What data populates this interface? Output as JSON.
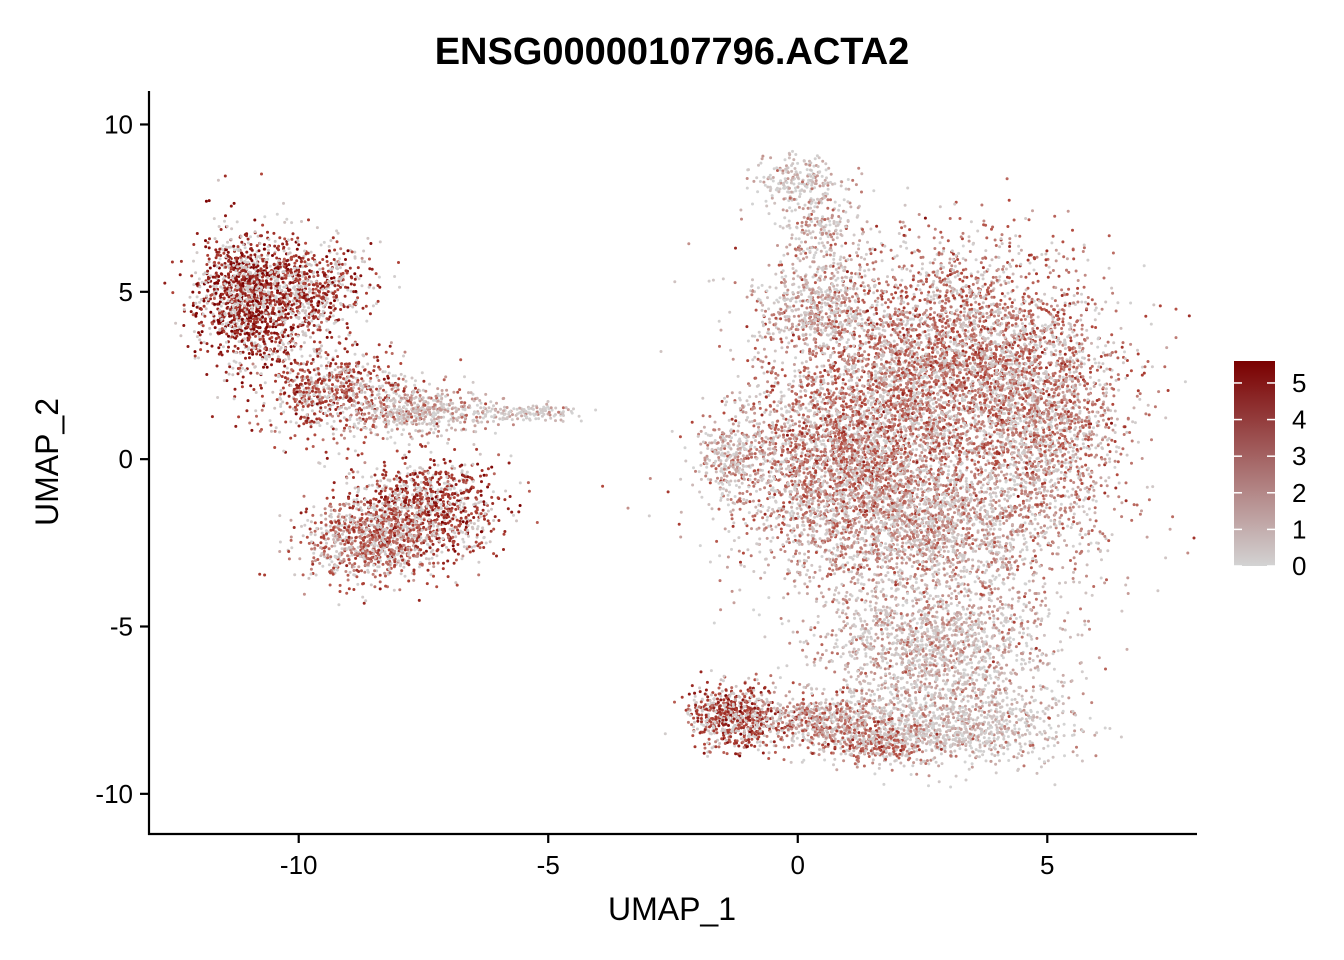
{
  "chart_data": {
    "type": "scatter",
    "title": "ENSG00000107796.ACTA2",
    "xlabel": "UMAP_1",
    "ylabel": "UMAP_2",
    "xlim": [
      -13,
      8
    ],
    "ylim": [
      -11.2,
      11
    ],
    "x_ticks": [
      -10,
      -5,
      0,
      5
    ],
    "x_tick_labels": [
      "-10",
      "-5",
      "0",
      "5"
    ],
    "y_ticks": [
      -10,
      -5,
      0,
      5,
      10
    ],
    "y_tick_labels": [
      "-10",
      "-5",
      "0",
      "5",
      "10"
    ],
    "grid": false,
    "color_scale": {
      "min": 0,
      "max": 5.6,
      "low_color": "#d3d3d3",
      "high_color": "#7a0000",
      "ticks": [
        0,
        1,
        2,
        3,
        4,
        5
      ],
      "tick_labels": [
        "0",
        "1",
        "2",
        "3",
        "4",
        "5"
      ],
      "legend_position": "right"
    },
    "clusters": [
      {
        "cx": -11.0,
        "cy": 4.8,
        "sx": 0.7,
        "sy": 1.3,
        "level": 4.5,
        "n": 1400
      },
      {
        "cx": -9.8,
        "cy": 5.0,
        "sx": 0.8,
        "sy": 1.0,
        "level": 4.0,
        "n": 600
      },
      {
        "cx": -9.3,
        "cy": 2.0,
        "sx": 1.0,
        "sy": 0.9,
        "level": 3.3,
        "n": 700
      },
      {
        "cx": -7.5,
        "cy": -1.5,
        "sx": 1.0,
        "sy": 1.0,
        "level": 3.8,
        "n": 1100
      },
      {
        "cx": -8.6,
        "cy": -2.5,
        "sx": 0.9,
        "sy": 0.8,
        "level": 2.5,
        "n": 800
      },
      {
        "cx": -7.6,
        "cy": 1.4,
        "sx": 0.9,
        "sy": 0.5,
        "level": 1.2,
        "n": 450
      },
      {
        "cx": -5.6,
        "cy": 1.4,
        "sx": 0.9,
        "sy": 0.2,
        "level": 0.6,
        "n": 160
      },
      {
        "cx": 3.0,
        "cy": 3.0,
        "sx": 2.0,
        "sy": 2.2,
        "level": 2.4,
        "n": 3800
      },
      {
        "cx": 1.0,
        "cy": 0.2,
        "sx": 1.6,
        "sy": 1.8,
        "level": 2.3,
        "n": 2600
      },
      {
        "cx": 5.0,
        "cy": 1.0,
        "sx": 1.0,
        "sy": 2.0,
        "level": 2.0,
        "n": 1300
      },
      {
        "cx": 2.5,
        "cy": -2.0,
        "sx": 2.2,
        "sy": 1.4,
        "level": 1.5,
        "n": 2200
      },
      {
        "cx": 2.8,
        "cy": -5.5,
        "sx": 1.6,
        "sy": 1.4,
        "level": 0.9,
        "n": 1600
      },
      {
        "cx": 3.0,
        "cy": -8.0,
        "sx": 1.6,
        "sy": 0.8,
        "level": 0.6,
        "n": 1000
      },
      {
        "cx": -1.3,
        "cy": -7.7,
        "sx": 0.6,
        "sy": 0.6,
        "level": 3.6,
        "n": 650
      },
      {
        "cx": 0.4,
        "cy": -7.8,
        "sx": 0.9,
        "sy": 0.6,
        "level": 2.0,
        "n": 500
      },
      {
        "cx": 1.6,
        "cy": -8.5,
        "sx": 0.7,
        "sy": 0.4,
        "level": 2.6,
        "n": 300
      },
      {
        "cx": 0.0,
        "cy": 8.3,
        "sx": 0.6,
        "sy": 0.5,
        "level": 0.6,
        "n": 220
      },
      {
        "cx": 0.5,
        "cy": 6.8,
        "sx": 0.6,
        "sy": 0.8,
        "level": 1.0,
        "n": 220
      },
      {
        "cx": 0.3,
        "cy": 4.5,
        "sx": 0.7,
        "sy": 0.9,
        "level": 1.2,
        "n": 450
      },
      {
        "cx": -1.3,
        "cy": 0.0,
        "sx": 0.5,
        "sy": 0.8,
        "level": 0.8,
        "n": 260
      }
    ]
  }
}
